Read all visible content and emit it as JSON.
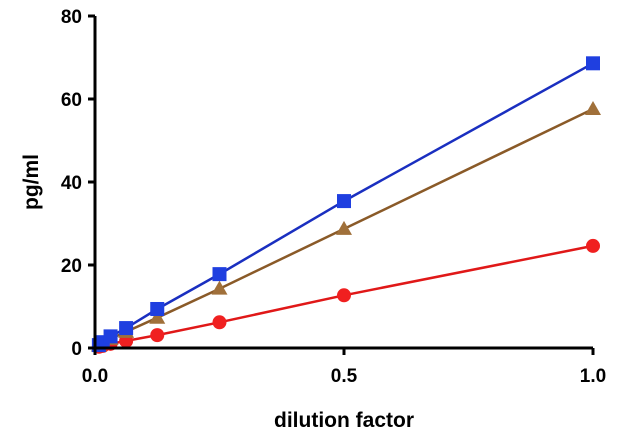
{
  "chart_data": {
    "type": "line",
    "title": "",
    "xlabel": "dilution factor",
    "ylabel": "pg/ml",
    "xlim": [
      0,
      1.0
    ],
    "ylim": [
      0,
      80
    ],
    "x_ticks": [
      0.0,
      0.5,
      1.0
    ],
    "x_tick_labels": [
      "0.0",
      "0.5",
      "1.0"
    ],
    "y_ticks": [
      0,
      20,
      40,
      60,
      80
    ],
    "y_tick_labels": [
      "0",
      "20",
      "40",
      "60",
      "80"
    ],
    "grid": false,
    "legend": "none",
    "x": [
      0.0078,
      0.0156,
      0.03125,
      0.0625,
      0.125,
      0.25,
      0.5,
      1.0
    ],
    "series": [
      {
        "marker": "square",
        "color": "#1f3fe0",
        "line_color": "#1a2fc0",
        "values": [
          0.7,
          1.4,
          2.8,
          4.8,
          9.4,
          17.8,
          35.4,
          68.6
        ]
      },
      {
        "marker": "triangle",
        "color": "#a0703a",
        "line_color": "#8a5a28",
        "values": [
          0.6,
          1.1,
          2.2,
          3.9,
          7.3,
          14.3,
          28.7,
          57.6
        ]
      },
      {
        "marker": "circle",
        "color": "#f02020",
        "line_color": "#e01818",
        "values": [
          0.3,
          0.5,
          1.0,
          1.7,
          3.1,
          6.2,
          12.7,
          24.6
        ]
      }
    ]
  }
}
